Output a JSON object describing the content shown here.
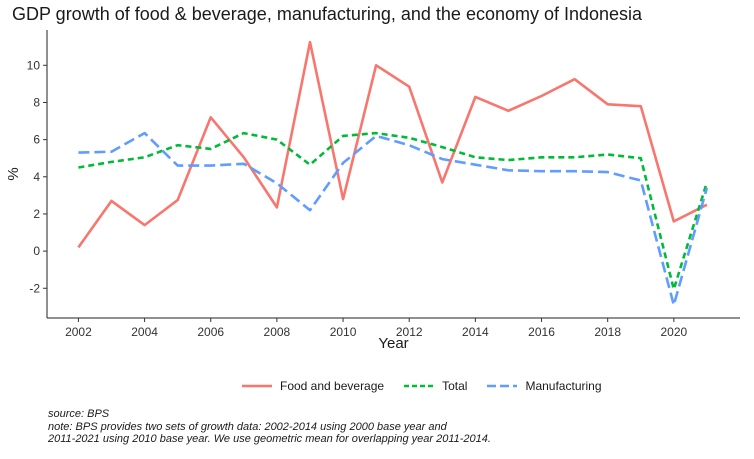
{
  "chart_data": {
    "type": "line",
    "title": "GDP growth of food & beverage, manufacturing, and the economy of Indonesia",
    "xlabel": "Year",
    "ylabel": "%",
    "x": [
      2002,
      2003,
      2004,
      2005,
      2006,
      2007,
      2008,
      2009,
      2010,
      2011,
      2012,
      2013,
      2014,
      2015,
      2016,
      2017,
      2018,
      2019,
      2020,
      2021
    ],
    "x_ticks": [
      "2002",
      "2004",
      "2006",
      "2008",
      "2010",
      "2012",
      "2014",
      "2016",
      "2018",
      "2020"
    ],
    "y_ticks": [
      "-2",
      "0",
      "2",
      "4",
      "6",
      "8",
      "10"
    ],
    "xlim": [
      2001.05,
      2022.0
    ],
    "ylim": [
      -3.6,
      11.9
    ],
    "grid": false,
    "legend_position": "bottom",
    "series": [
      {
        "name": "Food and beverage",
        "color": "#f8766d",
        "dash": "solid",
        "values": [
          0.2,
          2.7,
          1.4,
          2.75,
          7.2,
          5.05,
          2.35,
          11.25,
          2.8,
          10.0,
          8.85,
          3.7,
          8.3,
          7.55,
          8.35,
          9.25,
          7.9,
          7.8,
          1.6,
          2.5
        ]
      },
      {
        "name": "Total",
        "color": "#00ba38",
        "dash": "dashed",
        "values": [
          4.5,
          4.8,
          5.05,
          5.7,
          5.5,
          6.35,
          6.0,
          4.65,
          6.2,
          6.35,
          6.1,
          5.6,
          5.05,
          4.9,
          5.05,
          5.05,
          5.2,
          5.0,
          -2.05,
          3.7
        ]
      },
      {
        "name": "Manufacturing",
        "color": "#619cff",
        "dash": "longdash",
        "values": [
          5.3,
          5.35,
          6.35,
          4.6,
          4.6,
          4.7,
          3.65,
          2.2,
          4.75,
          6.2,
          5.7,
          4.95,
          4.65,
          4.35,
          4.3,
          4.3,
          4.25,
          3.8,
          -2.9,
          3.4
        ]
      }
    ],
    "notes": [
      "source: BPS",
      "note: BPS provides two sets of growth data: 2002-2014 using 2000 base year and",
      "2011-2021 using 2010 base year. We use geometric mean for overlapping year 2011-2014."
    ]
  }
}
